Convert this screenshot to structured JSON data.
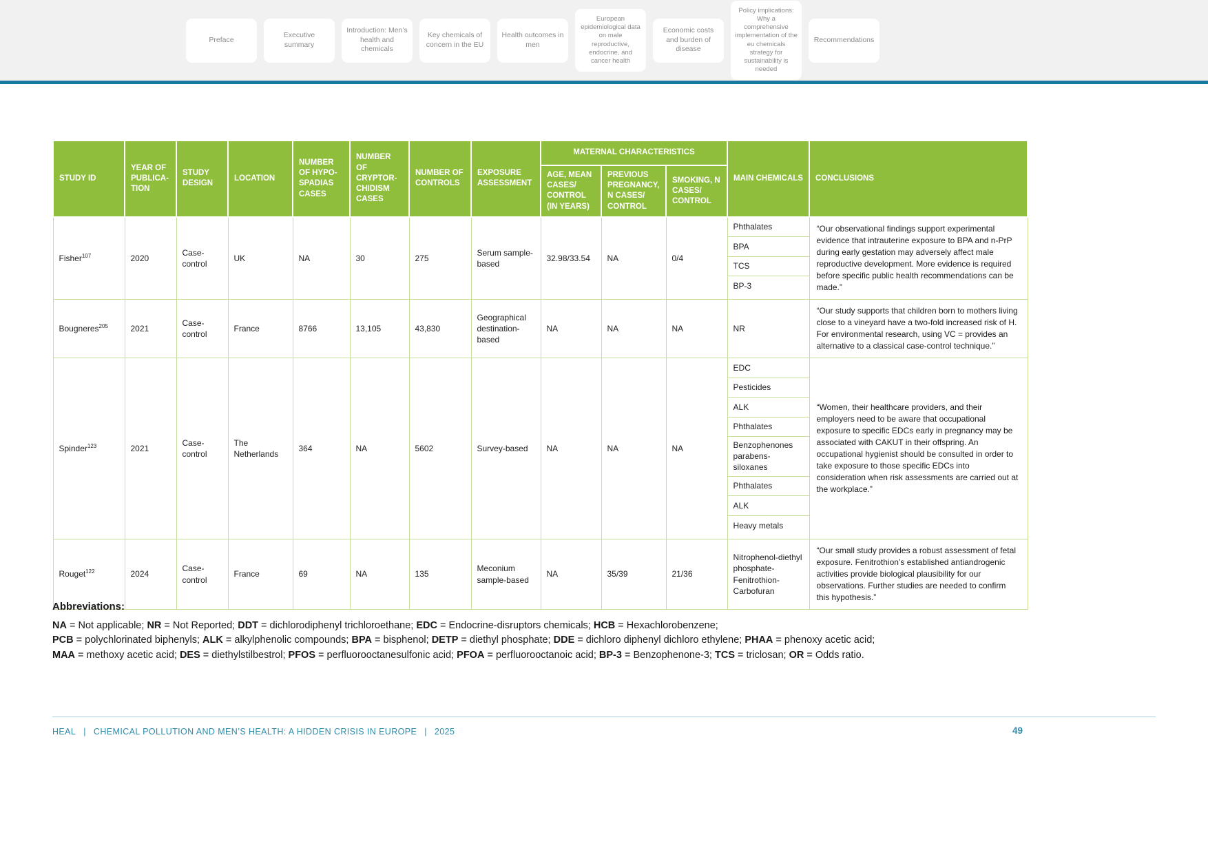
{
  "colors": {
    "header_green": "#8fbe3d",
    "table_border_green": "#c9dd9a",
    "nav_rule_teal": "#177a9c",
    "footer_teal": "#2e8bab"
  },
  "nav": {
    "tabs": [
      "Preface",
      "Executive summary",
      "Introduction: Men’s health and chemicals",
      "Key chemicals of concern in the EU",
      "Health outcomes in men",
      "European epidemiological data on male reproductive, endocrine, and cancer health",
      "Economic costs and burden of disease",
      "Policy implications: Why a comprehensive implementation of the eu chemicals strategy for sustainability is needed",
      "Recommendations"
    ]
  },
  "table": {
    "maternal_group": "MATERNAL CHARACTERISTICS",
    "columns": [
      "STUDY ID",
      "YEAR OF PUBLICA-TION",
      "STUDY DESIGN",
      "LOCATION",
      "NUMBER OF HYPO-SPADIAS CASES",
      "NUMBER OF CRYPTOR-CHIDISM CASES",
      "NUMBER OF CONTROLS",
      "EXPOSURE ASSESSMENT",
      "AGE, MEAN CASES/ CONTROL (IN YEARS)",
      "PREVIOUS PREGNANCY, N CASES/ CONTROL",
      "SMOKING, N CASES/ CONTROL",
      "MAIN CHEMICALS",
      "CONCLUSIONS"
    ],
    "rows": [
      {
        "study": "Fisher",
        "ref": "107",
        "year": "2020",
        "design": "Case-control",
        "location": "UK",
        "hypospadias": "NA",
        "cryptorchidism": "30",
        "controls": "275",
        "exposure": "Serum sample-based",
        "age_mean": "32.98/33.54",
        "previous_pregnancy": "NA",
        "smoking": "0/4",
        "chemicals": [
          "Phthalates",
          "BPA",
          "TCS",
          "BP-3"
        ],
        "conclusion": "“Our observational findings support experimental evidence that intrauterine exposure to BPA and n-PrP during early gestation may adversely affect male reproductive development. More evidence is required before specific public health recommendations can be made.”"
      },
      {
        "study": "Bougneres",
        "ref": "205",
        "year": "2021",
        "design": "Case-control",
        "location": "France",
        "hypospadias": "8766",
        "cryptorchidism": "13,105",
        "controls": "43,830",
        "exposure": "Geographical destination-based",
        "age_mean": "NA",
        "previous_pregnancy": "NA",
        "smoking": "NA",
        "chemicals": [
          "NR"
        ],
        "conclusion": "“Our study supports that children born to mothers living close to a vineyard have a two-fold increased risk of H. For environmental research, using VC = provides an alternative to a classical case-control technique.”"
      },
      {
        "study": "Spinder",
        "ref": "123",
        "year": "2021",
        "design": "Case-control",
        "location": "The Netherlands",
        "hypospadias": "364",
        "cryptorchidism": "NA",
        "controls": "5602",
        "exposure": "Survey-based",
        "age_mean": "NA",
        "previous_pregnancy": "NA",
        "smoking": "NA",
        "chemicals": [
          "EDC",
          "Pesticides",
          "ALK",
          "Phthalates",
          "Benzophenones parabens-siloxanes",
          "Phthalates",
          "ALK",
          "Heavy metals"
        ],
        "conclusion": "“Women, their healthcare providers, and their employers need to be aware that occupational exposure to specific EDCs early in pregnancy may be associated with CAKUT in their offspring. An occupational hygienist should be consulted in order to take exposure to those specific EDCs into consideration when risk assessments are carried out at the workplace.”"
      },
      {
        "study": "Rouget",
        "ref": "122",
        "year": "2024",
        "design": "Case-control",
        "location": "France",
        "hypospadias": "69",
        "cryptorchidism": "NA",
        "controls": "135",
        "exposure": "Meconium sample-based",
        "age_mean": "NA",
        "previous_pregnancy": "35/39",
        "smoking": "21/36",
        "chemicals": [
          "Nitrophenol-diethyl phosphate-Fenitrothion-Carbofuran"
        ],
        "conclusion": "“Our small study provides a robust assessment of fetal exposure. Fenitrothion’s established antiandrogenic activities provide biological plausibility for our observations. Further studies are needed to confirm this hypothesis.”"
      }
    ]
  },
  "abbreviations": {
    "title": "Abbreviations:",
    "lines": [
      {
        "items": [
          {
            "abbr": "NA",
            "def": "Not applicable"
          },
          {
            "abbr": "NR",
            "def": "Not Reported"
          },
          {
            "abbr": "DDT",
            "def": "dichlorodiphenyl trichloroethane"
          },
          {
            "abbr": "EDC",
            "def": "Endocrine-disruptors chemicals"
          },
          {
            "abbr": "HCB",
            "def": "Hexachlorobenzene"
          }
        ],
        "end": ";"
      },
      {
        "items": [
          {
            "abbr": "PCB",
            "def": "polychlorinated biphenyls"
          },
          {
            "abbr": "ALK",
            "def": "alkylphenolic compounds"
          },
          {
            "abbr": "BPA",
            "def": "bisphenol"
          },
          {
            "abbr": "DETP",
            "def": "diethyl phosphate"
          },
          {
            "abbr": "DDE",
            "def": "dichloro diphenyl dichloro ethylene"
          },
          {
            "abbr": "PHAA",
            "def": "phenoxy acetic acid"
          }
        ],
        "end": ";"
      },
      {
        "items": [
          {
            "abbr": "MAA",
            "def": "methoxy acetic acid"
          },
          {
            "abbr": "DES",
            "def": "diethylstilbestrol"
          },
          {
            "abbr": "PFOS",
            "def": "perfluorooctanesulfonic acid"
          },
          {
            "abbr": "PFOA",
            "def": "perfluorooctanoic acid"
          },
          {
            "abbr": "BP-3",
            "def": "Benzophenone-3"
          },
          {
            "abbr": "TCS",
            "def": "triclosan"
          },
          {
            "abbr": "OR",
            "def": "Odds ratio"
          }
        ],
        "end": "."
      }
    ]
  },
  "footer": {
    "items": [
      "HEAL",
      "CHEMICAL POLLUTION AND MEN’S HEALTH: A HIDDEN CRISIS IN EUROPE",
      "2025"
    ],
    "separator": "|",
    "page": "49"
  }
}
